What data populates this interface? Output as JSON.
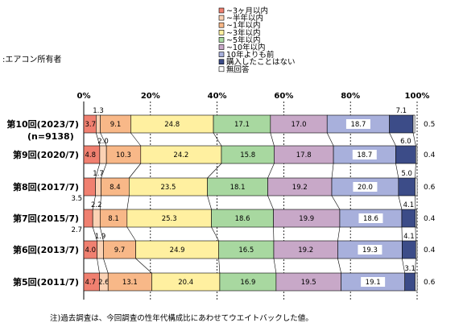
{
  "subtitle": ":エアコン所有者",
  "note": "注)過去調査は、今回調査の性年代構成比にあわせてウエイトバックした値。",
  "chart_data": {
    "type": "bar",
    "orientation": "horizontal",
    "stacked": true,
    "x_range": [
      0,
      100
    ],
    "x_ticks": [
      "0%",
      "20%",
      "40%",
      "60%",
      "80%",
      "100%"
    ],
    "legend_position": "top",
    "categories": [
      {
        "label": "第10回(2023/7)",
        "sub": "(n=9138)"
      },
      {
        "label": "第9回(2020/7)",
        "sub": ""
      },
      {
        "label": "第8回(2017/7)",
        "sub": ""
      },
      {
        "label": "第7回(2015/7)",
        "sub": ""
      },
      {
        "label": "第6回(2013/7)",
        "sub": ""
      },
      {
        "label": "第5回(2011/7)",
        "sub": ""
      }
    ],
    "series": [
      {
        "name": "~3ヶ月以内",
        "color": "#f08070",
        "values": [
          3.7,
          4.8,
          3.5,
          2.7,
          4.0,
          4.7
        ],
        "labels": [
          "3.7",
          "4.8",
          "3.5",
          "2.7",
          "4.0",
          "4.7"
        ]
      },
      {
        "name": "~半年以内",
        "color": "#fbd2b4",
        "values": [
          1.3,
          2.0,
          1.7,
          2.2,
          1.9,
          2.6
        ],
        "labels": [
          "1.3",
          "2.0",
          "1.7",
          "2.2",
          "1.9",
          "2.6"
        ]
      },
      {
        "name": "~1年以内",
        "color": "#f8b888",
        "values": [
          9.1,
          10.3,
          8.4,
          8.1,
          9.7,
          13.1
        ],
        "labels": [
          "9.1",
          "10.3",
          "8.4",
          "8.1",
          "9.7",
          "13.1"
        ]
      },
      {
        "name": "~3年以内",
        "color": "#fff0a0",
        "values": [
          24.8,
          24.2,
          23.5,
          25.3,
          24.9,
          20.4
        ],
        "labels": [
          "24.8",
          "24.2",
          "23.5",
          "25.3",
          "24.9",
          "20.4"
        ]
      },
      {
        "name": "~5年以内",
        "color": "#a8d8a0",
        "values": [
          17.1,
          15.8,
          18.1,
          18.6,
          16.5,
          16.9
        ],
        "labels": [
          "17.1",
          "15.8",
          "18.1",
          "18.6",
          "16.5",
          "16.9"
        ]
      },
      {
        "name": "~10年以内",
        "color": "#c8a8c8",
        "values": [
          17.0,
          17.8,
          19.2,
          19.9,
          19.2,
          19.5
        ],
        "labels": [
          "17.0",
          "17.8",
          "19.2",
          "19.9",
          "19.2",
          "19.5"
        ]
      },
      {
        "name": "10年よりも前",
        "color": "#a8b0dc",
        "values": [
          18.7,
          18.7,
          20.0,
          18.6,
          19.3,
          19.1
        ],
        "labels": [
          "18.7",
          "18.7",
          "20.0",
          "18.6",
          "19.3",
          "19.1"
        ]
      },
      {
        "name": "購入したことはない",
        "color": "#3c4c88",
        "values": [
          7.1,
          6.0,
          5.0,
          4.1,
          4.1,
          3.1
        ],
        "labels": [
          "7.1",
          "6.0",
          "5.0",
          "4.1",
          "4.1",
          "3.1"
        ]
      },
      {
        "name": "無回答",
        "color": "#ffffff",
        "values": [
          0.5,
          0.4,
          0.6,
          0.4,
          0.4,
          0.6
        ],
        "labels": [
          "0.5",
          "0.4",
          "0.6",
          "0.4",
          "0.4",
          "0.6"
        ]
      }
    ]
  }
}
